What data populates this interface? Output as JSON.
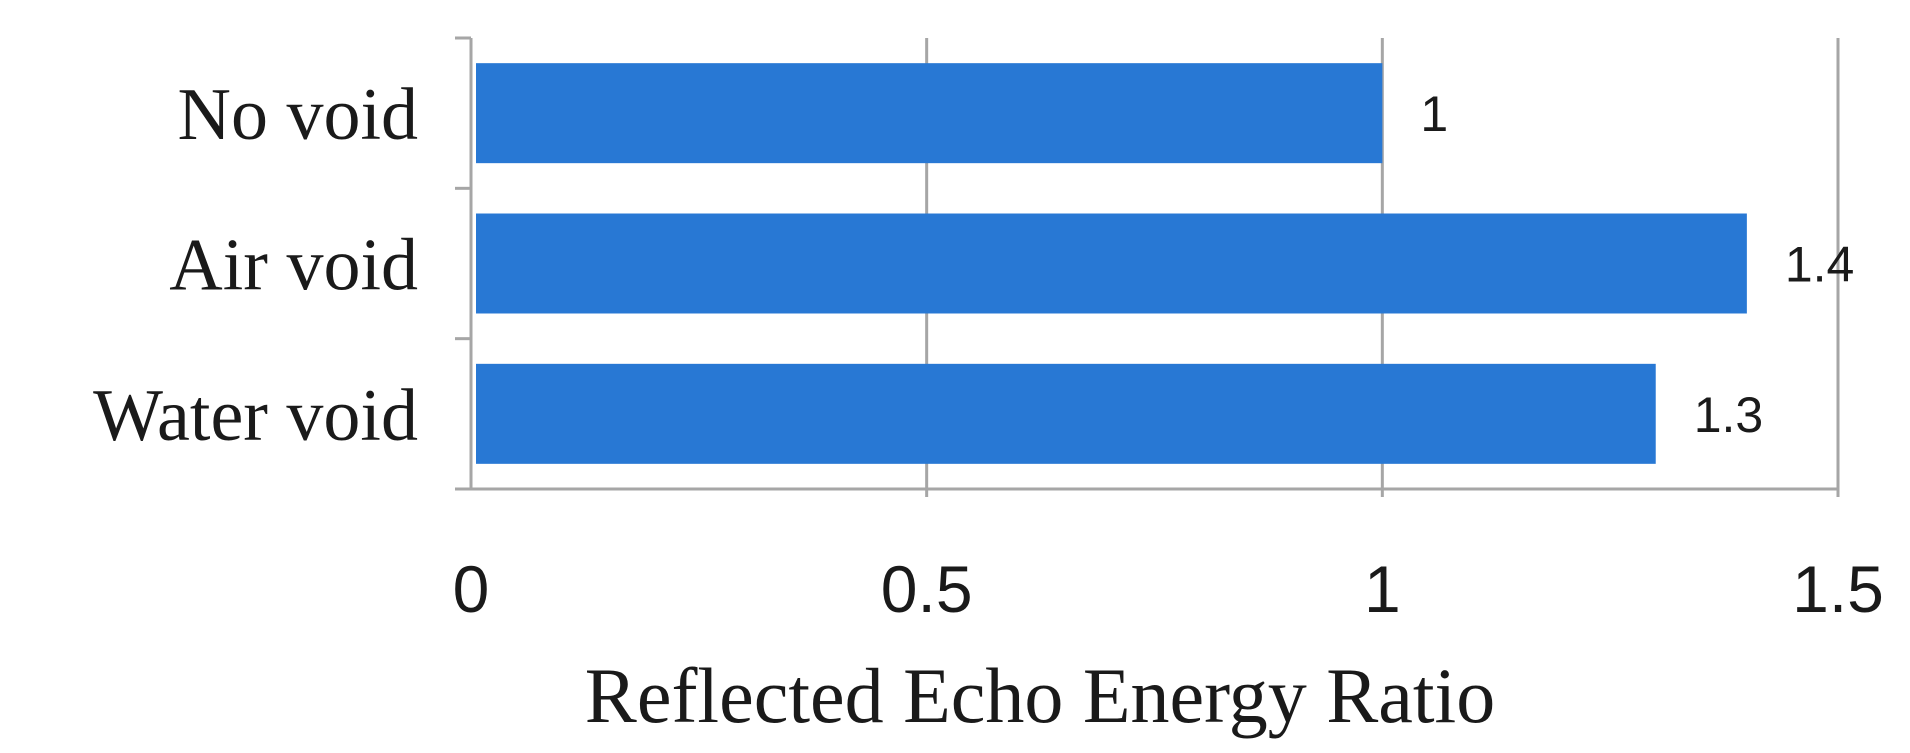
{
  "chart_data": {
    "type": "bar",
    "orientation": "horizontal",
    "categories": [
      "No void",
      "Air void",
      "Water void"
    ],
    "values": [
      1,
      1.4,
      1.3
    ],
    "data_labels": [
      "1",
      "1.4",
      "1.3"
    ],
    "xlabel": "Reflected Echo Energy Ratio",
    "ylabel": "",
    "xlim": [
      0,
      1.5
    ],
    "x_ticks": [
      0,
      0.5,
      1,
      1.5
    ],
    "x_tick_labels": [
      "0",
      "0.5",
      "1",
      "1.5"
    ],
    "grid": "vertical",
    "legend": "none",
    "bar_color": "#2878D4"
  }
}
